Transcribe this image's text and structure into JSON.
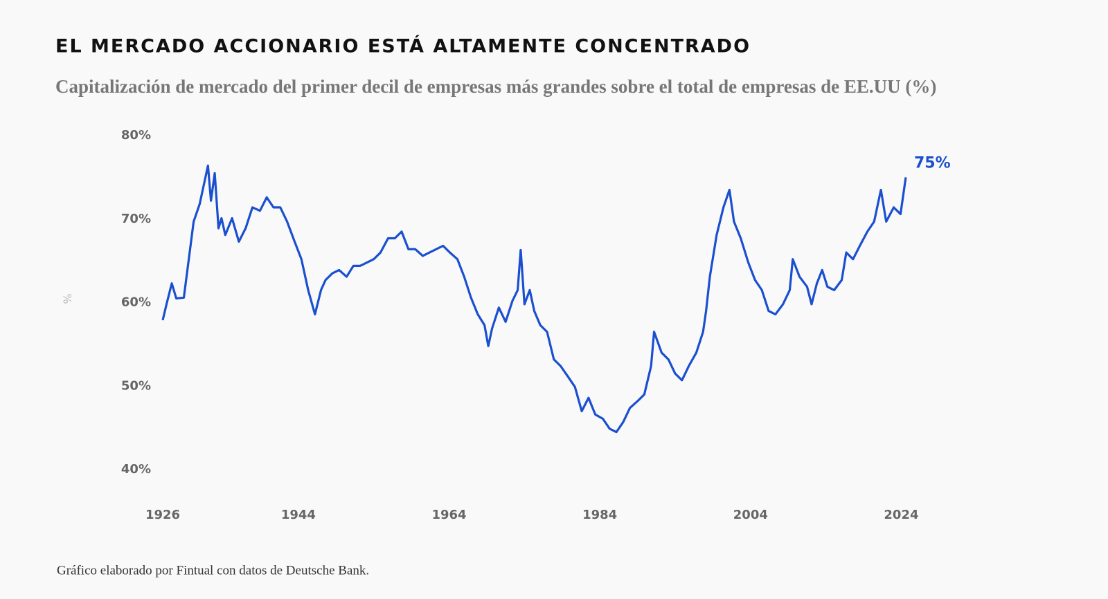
{
  "chart_data": {
    "type": "line",
    "title": "EL MERCADO ACCIONARIO ESTÁ ALTAMENTE CONCENTRADO",
    "subtitle": "Capitalización de mercado del primer decil de empresas más grandes sobre el total de empresas de EE.UU (%)",
    "y_label": "%",
    "source": "Gráfico elaborado por Fintual con datos de Deutsche Bank.",
    "last_value_label": "75%",
    "x": [
      1926.0,
      1926.5,
      1927.2,
      1927.8,
      1928.8,
      1929.4,
      1930.1,
      1930.9,
      1931.5,
      1932.0,
      1932.4,
      1932.9,
      1933.4,
      1933.8,
      1934.3,
      1935.2,
      1936.1,
      1937.0,
      1937.9,
      1938.9,
      1939.8,
      1940.7,
      1941.6,
      1942.5,
      1943.5,
      1944.4,
      1945.3,
      1946.2,
      1947.0,
      1947.6,
      1948.5,
      1949.4,
      1950.4,
      1951.3,
      1952.2,
      1953.1,
      1954.0,
      1954.9,
      1955.9,
      1956.8,
      1957.7,
      1958.6,
      1959.5,
      1960.5,
      1961.4,
      1962.3,
      1963.2,
      1964.1,
      1965.1,
      1966.0,
      1966.9,
      1967.8,
      1968.7,
      1969.2,
      1969.7,
      1970.6,
      1971.5,
      1972.4,
      1973.1,
      1973.5,
      1974.0,
      1974.7,
      1975.3,
      1976.1,
      1977.0,
      1977.9,
      1978.8,
      1979.8,
      1980.7,
      1981.6,
      1982.5,
      1983.4,
      1984.4,
      1985.3,
      1986.2,
      1987.1,
      1988.0,
      1989.0,
      1989.9,
      1990.8,
      1991.2,
      1992.2,
      1993.1,
      1994.0,
      1994.9,
      1995.8,
      1996.8,
      1997.7,
      1998.1,
      1998.6,
      1999.5,
      2000.4,
      2001.2,
      2001.8,
      2002.7,
      2003.7,
      2004.6,
      2005.5,
      2006.4,
      2007.3,
      2008.3,
      2009.2,
      2009.6,
      2010.5,
      2011.5,
      2012.1,
      2012.8,
      2013.5,
      2014.2,
      2015.1,
      2016.1,
      2016.7,
      2017.6,
      2018.5,
      2019.5,
      2020.4,
      2021.3,
      2022.0,
      2023.0,
      2023.9,
      2024.6
    ],
    "series": [
      {
        "name": "Primer decil",
        "color": "#1a4fcf",
        "values": [
          57.9,
          59.8,
          62.3,
          60.5,
          60.6,
          64.8,
          69.7,
          71.8,
          74.3,
          76.4,
          72.2,
          75.5,
          68.9,
          70.1,
          68.1,
          70.1,
          67.3,
          68.9,
          71.4,
          71.0,
          72.6,
          71.4,
          71.4,
          69.7,
          67.3,
          65.2,
          61.5,
          58.6,
          61.5,
          62.7,
          63.5,
          63.9,
          63.1,
          64.4,
          64.4,
          64.8,
          65.2,
          66.0,
          67.7,
          67.7,
          68.5,
          66.4,
          66.4,
          65.6,
          66.0,
          66.4,
          66.8,
          66.0,
          65.2,
          63.1,
          60.6,
          58.6,
          57.3,
          54.8,
          56.9,
          59.4,
          57.7,
          60.2,
          61.5,
          66.3,
          59.8,
          61.5,
          59.0,
          57.3,
          56.5,
          53.2,
          52.4,
          51.1,
          49.9,
          47.0,
          48.6,
          46.6,
          46.1,
          44.9,
          44.5,
          45.7,
          47.4,
          48.2,
          49.0,
          52.4,
          56.5,
          54.0,
          53.2,
          51.5,
          50.7,
          52.4,
          54.0,
          56.5,
          59.0,
          63.1,
          68.1,
          71.4,
          73.5,
          69.7,
          67.7,
          64.8,
          62.7,
          61.5,
          59.0,
          58.6,
          59.8,
          61.5,
          65.2,
          63.1,
          61.9,
          59.8,
          62.3,
          63.9,
          61.9,
          61.5,
          62.7,
          66.0,
          65.2,
          66.8,
          68.5,
          69.7,
          73.5,
          69.7,
          71.4,
          70.6,
          75
        ]
      }
    ],
    "xlim": [
      1926,
      2024.6
    ],
    "xticks": [
      1926,
      1944,
      1964,
      1984,
      2004,
      2024
    ],
    "ylim": [
      40,
      80
    ],
    "yticks": [
      {
        "value": 40,
        "label": "40%"
      },
      {
        "value": 50,
        "label": "50%"
      },
      {
        "value": 60,
        "label": "60%"
      },
      {
        "value": 70,
        "label": "70%"
      },
      {
        "value": 80,
        "label": "80%"
      }
    ],
    "grid": false
  }
}
